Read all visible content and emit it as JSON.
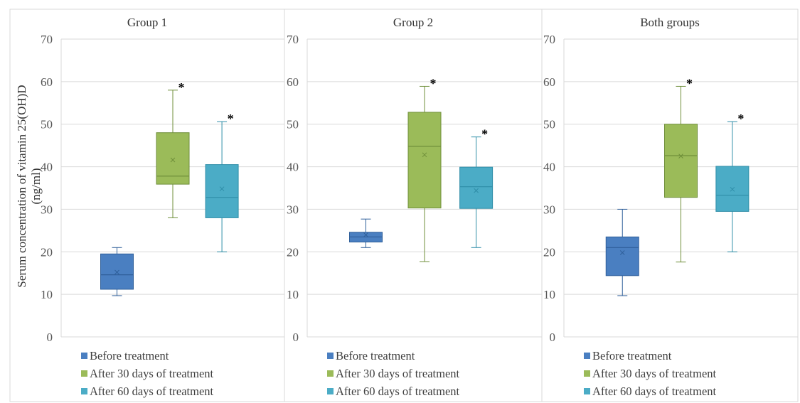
{
  "y_axis_label": "Serum concentration of vitamin 25(OH)D\n(ng/ml)",
  "legend_labels": [
    "Before treatment",
    "After 30 days of treatment",
    "After 60 days of treatment"
  ],
  "series_colors": [
    "#4a7fc1",
    "#9bbb59",
    "#4bacc6"
  ],
  "series_border_colors": [
    "#2f5f9a",
    "#6f8f3a",
    "#2f8ea8"
  ],
  "chart_data": [
    {
      "type": "box",
      "title": "Group 1",
      "ylim": [
        0,
        70
      ],
      "yticks": [
        0,
        10,
        20,
        30,
        40,
        50,
        60,
        70
      ],
      "grid": true,
      "legend": "bottom",
      "series": [
        {
          "name": "Before treatment",
          "min": 9.7,
          "q1": 11.2,
          "median": 14.6,
          "mean": 15.2,
          "q3": 19.5,
          "max": 21.0,
          "marker": ""
        },
        {
          "name": "After 30 days of treatment",
          "min": 28.0,
          "q1": 35.9,
          "median": 37.8,
          "mean": 41.6,
          "q3": 48.0,
          "max": 58.0,
          "marker": "*"
        },
        {
          "name": "After 60 days of treatment",
          "min": 20.0,
          "q1": 28.0,
          "median": 32.8,
          "mean": 34.8,
          "q3": 40.5,
          "max": 50.6,
          "marker": "*"
        }
      ]
    },
    {
      "type": "box",
      "title": "Group 2",
      "ylim": [
        0,
        70
      ],
      "yticks": [
        0,
        10,
        20,
        30,
        40,
        50,
        60,
        70
      ],
      "grid": true,
      "legend": "bottom",
      "series": [
        {
          "name": "Before treatment",
          "min": 21.0,
          "q1": 22.3,
          "median": 23.5,
          "mean": 24.0,
          "q3": 24.6,
          "max": 27.7,
          "marker": ""
        },
        {
          "name": "After 30 days of treatment",
          "min": 17.7,
          "q1": 30.3,
          "median": 44.8,
          "mean": 42.8,
          "q3": 52.8,
          "max": 58.9,
          "marker": "*"
        },
        {
          "name": "After 60 days of treatment",
          "min": 21.0,
          "q1": 30.2,
          "median": 35.3,
          "mean": 34.4,
          "q3": 39.9,
          "max": 47.0,
          "marker": "*"
        }
      ]
    },
    {
      "type": "box",
      "title": "Both groups",
      "ylim": [
        0,
        70
      ],
      "yticks": [
        0,
        10,
        20,
        30,
        40,
        50,
        60,
        70
      ],
      "grid": true,
      "legend": "bottom",
      "series": [
        {
          "name": "Before treatment",
          "min": 9.7,
          "q1": 14.4,
          "median": 21.0,
          "mean": 19.8,
          "q3": 23.5,
          "max": 30.0,
          "marker": ""
        },
        {
          "name": "After 30 days of treatment",
          "min": 17.6,
          "q1": 32.8,
          "median": 42.6,
          "mean": 42.5,
          "q3": 50.0,
          "max": 58.9,
          "marker": "*"
        },
        {
          "name": "After 60 days of treatment",
          "min": 20.0,
          "q1": 29.5,
          "median": 33.3,
          "mean": 34.7,
          "q3": 40.1,
          "max": 50.6,
          "marker": "*"
        }
      ]
    }
  ]
}
